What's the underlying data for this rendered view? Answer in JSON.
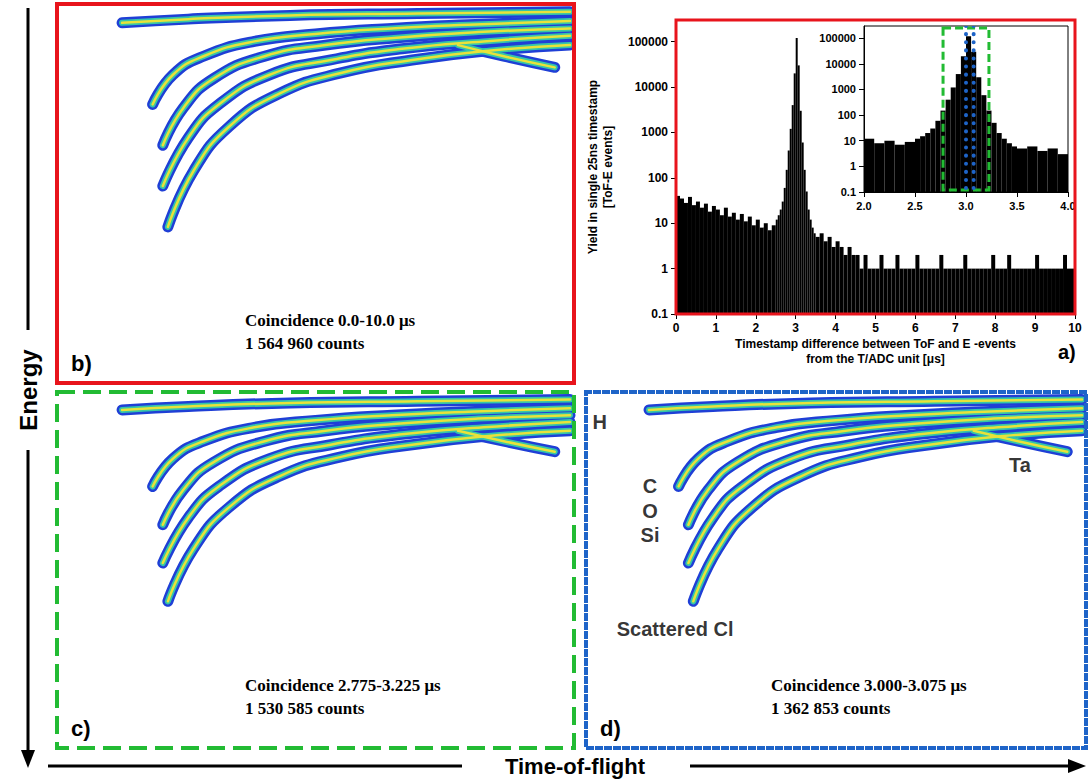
{
  "x_label": "Time-of-flight",
  "y_label": "Energy",
  "chart_data": [
    {
      "panel": "a)",
      "type": "histogram",
      "x_label": [
        "Timestamp difference between ToF and E -events",
        "from the T/ADC unit [μs]"
      ],
      "y_label": [
        "Yield in single 25ns timestamp",
        "[ToF-E events]"
      ],
      "xlim": [
        0,
        10
      ],
      "xticks": [
        0,
        1,
        2,
        3,
        4,
        5,
        6,
        7,
        8,
        9,
        10
      ],
      "ylim": [
        0.1,
        300000
      ],
      "yticks": [
        0.1,
        1,
        10,
        100,
        1000,
        10000,
        100000
      ],
      "log": "y",
      "grid": false,
      "color": "#000000",
      "bins": [
        0,
        0.1,
        0.2,
        0.3,
        0.4,
        0.5,
        0.6,
        0.7,
        0.8,
        0.9,
        1,
        1.1,
        1.2,
        1.3,
        1.4,
        1.5,
        1.6,
        1.7,
        1.8,
        1.9,
        2,
        2.1,
        2.2,
        2.3,
        2.4,
        2.5,
        2.55,
        2.6,
        2.65,
        2.7,
        2.75,
        2.8,
        2.85,
        2.9,
        2.95,
        3,
        3.05,
        3.1,
        3.15,
        3.2,
        3.25,
        3.3,
        3.35,
        3.4,
        3.45,
        3.5,
        3.6,
        3.7,
        3.8,
        3.9,
        4,
        4.1,
        4.2,
        4.3,
        4.4,
        4.5,
        4.6,
        4.7,
        4.8,
        4.9,
        5,
        5.1,
        5.2,
        5.3,
        5.4,
        5.5,
        5.6,
        5.7,
        5.8,
        5.9,
        6,
        6.1,
        6.2,
        6.3,
        6.4,
        6.5,
        6.6,
        6.7,
        6.8,
        6.9,
        7,
        7.1,
        7.2,
        7.3,
        7.4,
        7.5,
        7.6,
        7.7,
        7.8,
        7.9,
        8,
        8.1,
        8.2,
        8.3,
        8.4,
        8.5,
        8.6,
        8.7,
        8.8,
        8.9,
        9,
        9.1,
        9.2,
        9.3,
        9.4,
        9.5,
        9.6,
        9.7,
        9.8,
        9.9,
        10
      ],
      "counts": [
        40,
        35,
        28,
        38,
        25,
        30,
        22,
        27,
        18,
        24,
        20,
        15,
        22,
        14,
        17,
        12,
        16,
        11,
        14,
        9,
        12,
        8,
        10,
        7,
        9,
        12,
        15,
        20,
        30,
        60,
        150,
        400,
        1200,
        4000,
        20000,
        120000,
        30000,
        3000,
        600,
        150,
        50,
        20,
        12,
        8,
        6,
        5,
        6,
        4,
        5,
        3,
        4,
        3,
        2,
        3,
        2,
        2,
        1,
        2,
        1,
        1,
        1,
        2,
        1,
        1,
        1,
        2,
        1,
        1,
        1,
        1,
        2,
        1,
        1,
        1,
        1,
        1,
        2,
        1,
        1,
        1,
        1,
        1,
        2,
        1,
        1,
        1,
        1,
        1,
        1,
        2,
        1,
        1,
        1,
        2,
        1,
        1,
        1,
        1,
        1,
        1,
        2,
        1,
        1,
        1,
        1,
        1,
        1,
        2,
        1,
        1
      ],
      "inset": {
        "xlim": [
          2,
          4
        ],
        "xticks": [
          {
            "value": 2,
            "label": "2.0"
          },
          {
            "value": 2.5,
            "label": "2.5"
          },
          {
            "value": 3,
            "label": "3.0"
          },
          {
            "value": 3.5,
            "label": "3.5"
          },
          {
            "value": 4,
            "label": "4.0"
          }
        ],
        "ylim": [
          0.1,
          300000
        ],
        "yticks": [
          0.1,
          1,
          10,
          100,
          1000,
          10000,
          100000
        ],
        "windows": [
          {
            "range": [
              2.775,
              3.225
            ],
            "color": "#22bb33",
            "line_style": "dashed"
          },
          {
            "range": [
              3.0,
              3.075
            ],
            "color": "#1e64c8",
            "line_style": "dotted"
          }
        ]
      }
    },
    {
      "panel": "b)",
      "type": "tof_e",
      "color": "#e8141c",
      "line_style": "solid",
      "coincidence": "Coincidence 0.0-10.0 μs",
      "counts_label": "1 564 960 counts",
      "xlim": [
        0,
        100
      ],
      "ylim": [
        100,
        0
      ],
      "tick_labels": false,
      "series": [
        {
          "x": [
            12,
            25,
            45,
            70,
            100
          ],
          "values": [
            4,
            3,
            2,
            1.5,
            1
          ]
        },
        {
          "x": [
            18,
            22,
            28,
            38,
            50,
            65,
            80,
            100
          ],
          "values": [
            26,
            18,
            13,
            9,
            7,
            5.5,
            4.5,
            3.5
          ]
        },
        {
          "x": [
            20,
            24,
            30,
            40,
            52,
            66,
            82,
            100
          ],
          "values": [
            37,
            27,
            19,
            13,
            10,
            8,
            6.5,
            5.5
          ]
        },
        {
          "x": [
            20,
            25,
            31,
            41,
            53,
            67,
            83,
            100
          ],
          "values": [
            48,
            35,
            26,
            18,
            14,
            11,
            9,
            7.5
          ]
        },
        {
          "x": [
            21,
            26,
            33,
            43,
            55,
            69,
            84,
            100
          ],
          "values": [
            59,
            44,
            32,
            23,
            17.5,
            14,
            11.5,
            10
          ]
        },
        {
          "x": [
            78,
            87,
            97
          ],
          "values": [
            10,
            13,
            16
          ]
        }
      ],
      "annotations": []
    },
    {
      "panel": "c)",
      "type": "tof_e",
      "color": "#22bb33",
      "line_style": "dashed",
      "coincidence": "Coincidence 2.775-3.225 μs",
      "counts_label": "1 530 585 counts",
      "xlim": [
        0,
        100
      ],
      "ylim": [
        100,
        0
      ],
      "tick_labels": false,
      "series": [
        {
          "x": [
            12,
            25,
            45,
            70,
            100
          ],
          "values": [
            4,
            3,
            2,
            1.5,
            1
          ]
        },
        {
          "x": [
            18,
            22,
            28,
            38,
            50,
            65,
            80,
            100
          ],
          "values": [
            26,
            18,
            13,
            9,
            7,
            5.5,
            4.5,
            3.5
          ]
        },
        {
          "x": [
            20,
            24,
            30,
            40,
            52,
            66,
            82,
            100
          ],
          "values": [
            37,
            27,
            19,
            13,
            10,
            8,
            6.5,
            5.5
          ]
        },
        {
          "x": [
            20,
            25,
            31,
            41,
            53,
            67,
            83,
            100
          ],
          "values": [
            48,
            35,
            26,
            18,
            14,
            11,
            9,
            7.5
          ]
        },
        {
          "x": [
            21,
            26,
            33,
            43,
            55,
            69,
            84,
            100
          ],
          "values": [
            59,
            44,
            32,
            23,
            17.5,
            14,
            11.5,
            10
          ]
        },
        {
          "x": [
            78,
            87,
            97
          ],
          "values": [
            10,
            13,
            16
          ]
        }
      ],
      "annotations": []
    },
    {
      "panel": "d)",
      "type": "tof_e",
      "color": "#1e64c8",
      "line_style": "dotted",
      "coincidence": "Coincidence 3.000-3.075 μs",
      "counts_label": "1 362 853 counts",
      "xlim": [
        0,
        100
      ],
      "ylim": [
        100,
        0
      ],
      "tick_labels": false,
      "series": [
        {
          "x": [
            12,
            25,
            45,
            70,
            100
          ],
          "values": [
            4,
            3,
            2,
            1.5,
            1
          ]
        },
        {
          "x": [
            18,
            22,
            28,
            38,
            50,
            65,
            80,
            100
          ],
          "values": [
            26,
            18,
            13,
            9,
            7,
            5.5,
            4.5,
            3.5
          ]
        },
        {
          "x": [
            20,
            24,
            30,
            40,
            52,
            66,
            82,
            100
          ],
          "values": [
            37,
            27,
            19,
            13,
            10,
            8,
            6.5,
            5.5
          ]
        },
        {
          "x": [
            20,
            25,
            31,
            41,
            53,
            67,
            83,
            100
          ],
          "values": [
            48,
            35,
            26,
            18,
            14,
            11,
            9,
            7.5
          ]
        },
        {
          "x": [
            21,
            26,
            33,
            43,
            55,
            69,
            84,
            100
          ],
          "values": [
            59,
            44,
            32,
            23,
            17.5,
            14,
            11.5,
            10
          ]
        },
        {
          "x": [
            78,
            87,
            97
          ],
          "values": [
            10,
            13,
            16
          ]
        }
      ],
      "annotations": [
        {
          "text": "H",
          "x": 2,
          "y": 7.5
        },
        {
          "text": "C",
          "x": 12.2,
          "y": 26
        },
        {
          "text": "O",
          "x": 12.2,
          "y": 33
        },
        {
          "text": "Si",
          "x": 12.2,
          "y": 40
        },
        {
          "text": "Ta",
          "x": 87.4,
          "y": 19.8
        },
        {
          "text": "Scattered Cl",
          "x": 17.3,
          "y": 67
        }
      ]
    }
  ]
}
